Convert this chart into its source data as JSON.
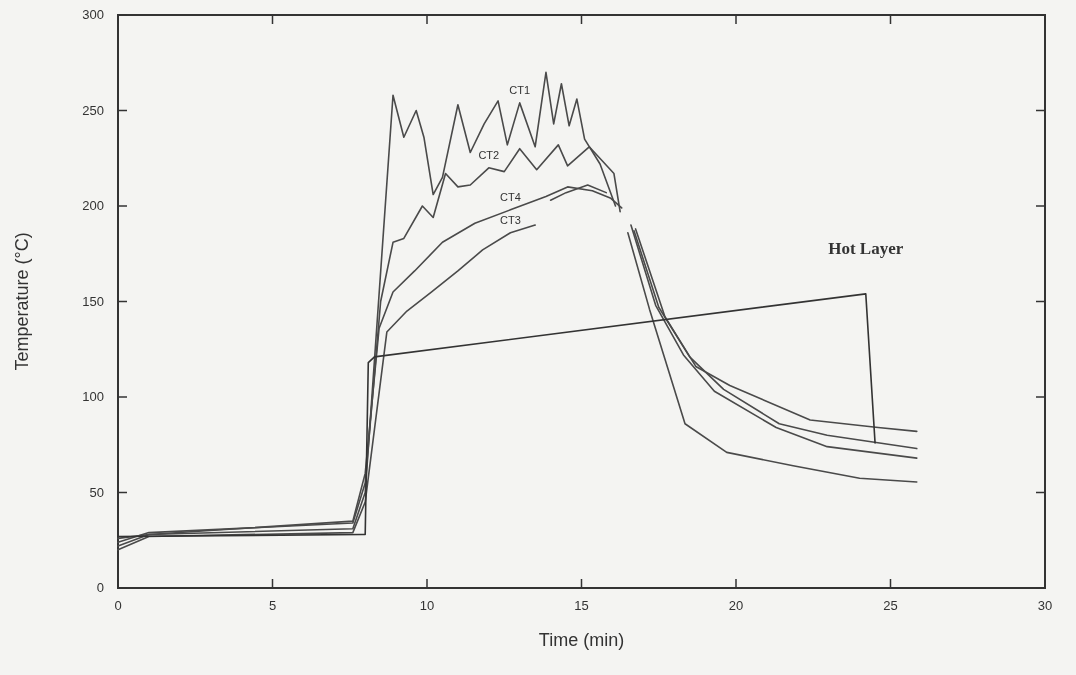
{
  "chart_data": {
    "type": "line",
    "xlabel": "Time (min)",
    "ylabel": "Temperature (°C)",
    "xlim": [
      0,
      30
    ],
    "ylim": [
      0,
      300
    ],
    "xticks": [
      0,
      5,
      10,
      15,
      20,
      25,
      30
    ],
    "yticks": [
      0,
      50,
      100,
      150,
      200,
      250,
      300
    ],
    "grid": false,
    "marker": "none",
    "line_style": "solid",
    "series": [
      {
        "color": "#4a4a4a",
        "x": [
          0,
          1,
          7.6,
          8.0,
          8.9,
          9.25,
          9.65,
          9.9,
          10.2,
          10.5,
          11.0,
          11.4,
          11.85,
          12.3,
          12.6,
          13.0,
          13.5,
          13.85,
          14.1,
          14.35,
          14.6,
          14.85,
          15.1,
          15.6,
          16.1,
          16.3,
          16.75,
          17.7,
          18.7,
          19.8,
          22.4,
          24.6,
          25.85
        ],
        "values": [
          22,
          28,
          31,
          50,
          258,
          236,
          250,
          236,
          206,
          215,
          253,
          228,
          243,
          255,
          232,
          254,
          231,
          270,
          243,
          264,
          242,
          256,
          235,
          222,
          200,
          null,
          188,
          142,
          116,
          106,
          88,
          84,
          82
        ]
      },
      {
        "color": "#4a4a4a",
        "x": [
          0,
          1,
          7.6,
          8.0,
          8.5,
          8.9,
          9.25,
          9.85,
          10.2,
          10.6,
          11.0,
          11.4,
          12.0,
          12.5,
          13.0,
          13.55,
          14.25,
          14.55,
          15.25,
          16.05,
          16.25,
          16.4,
          16.7,
          17.5,
          18.5,
          19.6,
          21.4,
          22.95,
          25.85
        ],
        "values": [
          24,
          29,
          34,
          55,
          150,
          181,
          183,
          200,
          194,
          217,
          210,
          211,
          220,
          218,
          230,
          219,
          232,
          221,
          231,
          217,
          197,
          null,
          187,
          147,
          121,
          104,
          86,
          80,
          73
        ]
      },
      {
        "color": "#4a4a4a",
        "x": [
          0,
          1,
          7.6,
          8.0,
          8.45,
          8.9,
          9.6,
          10.5,
          11.55,
          12.7,
          13.85,
          14.55,
          15.35,
          15.95,
          16.3,
          16.4,
          16.6,
          17.4,
          18.3,
          19.3,
          21.3,
          22.95,
          25.85
        ],
        "values": [
          26,
          28,
          35,
          60,
          136,
          155,
          166,
          181,
          191,
          198,
          205,
          210,
          208,
          204,
          199,
          null,
          190,
          148,
          122,
          103,
          84,
          74,
          68
        ]
      },
      {
        "color": "#4a4a4a",
        "x": [
          0,
          1,
          7.6,
          8.0,
          8.7,
          9.35,
          10.15,
          11.0,
          11.8,
          12.7,
          13.5,
          13.7,
          14.0,
          14.5,
          15.2,
          15.8,
          16.4,
          16.5,
          17.2,
          18.35,
          19.7,
          21.85,
          24.0,
          25.85
        ],
        "values": [
          20,
          27,
          29,
          45,
          134,
          145,
          155,
          166,
          177,
          186,
          190,
          null,
          203,
          207,
          211,
          207,
          null,
          186,
          146,
          86,
          71,
          64,
          57.5,
          55.5
        ]
      },
      {
        "name": "Hot Layer",
        "color": "#333333",
        "x": [
          0,
          7.9,
          8.0,
          8.1,
          8.3,
          24.2,
          24.5
        ],
        "values": [
          27,
          28,
          28,
          118,
          121,
          154,
          76
        ]
      }
    ],
    "annotations": [
      {
        "text": "CT1",
        "x": 13.0,
        "y": 254
      },
      {
        "text": "CT2",
        "x": 12.0,
        "y": 220
      },
      {
        "text": "CT4",
        "x": 12.7,
        "y": 198
      },
      {
        "text": "CT3",
        "x": 12.7,
        "y": 186
      }
    ]
  }
}
